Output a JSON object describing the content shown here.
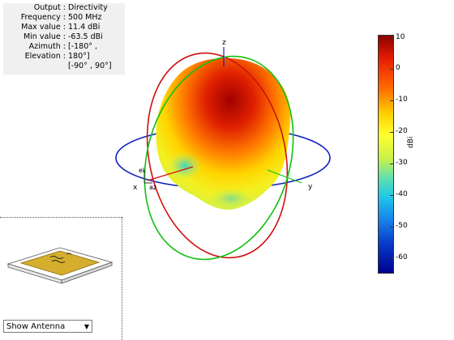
{
  "info": {
    "rows": [
      {
        "key": "Output",
        "value": "Directivity"
      },
      {
        "key": "Frequency",
        "value": "500 MHz"
      },
      {
        "key": "Max value",
        "value": "11.4 dBi"
      },
      {
        "key": "Min value",
        "value": "-63.5 dBi"
      },
      {
        "key": "Azimuth",
        "value": "[-180° ,"
      },
      {
        "key": "Elevation",
        "value": "180°]"
      },
      {
        "key": "",
        "value": "[-90° , 90°]"
      }
    ]
  },
  "axes": {
    "x": "x",
    "y": "y",
    "z": "z",
    "el": "el",
    "az": "az"
  },
  "colorbar": {
    "unit": "dBi",
    "ticks": [
      "10",
      "0",
      "-10",
      "-20",
      "-30",
      "-40",
      "-50",
      "-60"
    ]
  },
  "dropdown": {
    "label": "Show Antenna"
  }
}
